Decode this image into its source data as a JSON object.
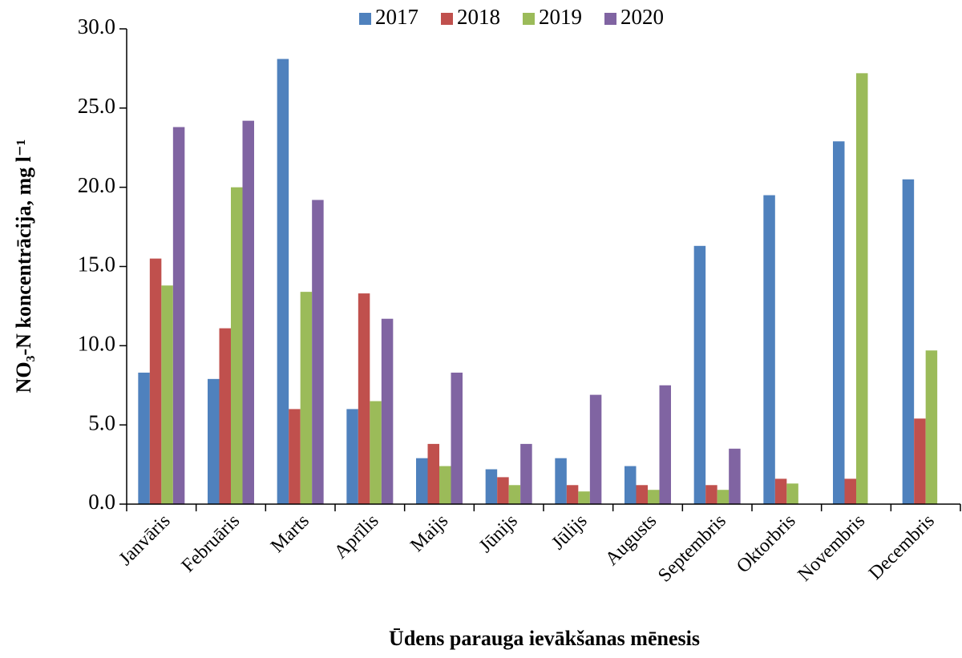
{
  "chart_data": {
    "type": "bar",
    "x_label": "Ūdens parauga ievākšanas mēnesis",
    "y_label": "NO₃-N koncentrācija, mg l⁻¹",
    "categories": [
      "Janvāris",
      "Februāris",
      "Marts",
      "Aprīlis",
      "Maijs",
      "Jūnijs",
      "Jūlijs",
      "Augusts",
      "Septembris",
      "Oktorbris",
      "Novembris",
      "Decembris"
    ],
    "series": [
      {
        "name": "2017",
        "color": "#4f81bd",
        "values": [
          8.3,
          7.9,
          28.1,
          6.0,
          2.9,
          2.2,
          2.9,
          2.4,
          16.3,
          19.5,
          22.9,
          20.5
        ]
      },
      {
        "name": "2018",
        "color": "#c0504d",
        "values": [
          15.5,
          11.1,
          6.0,
          13.3,
          3.8,
          1.7,
          1.2,
          1.2,
          1.2,
          1.6,
          1.6,
          5.4
        ]
      },
      {
        "name": "2019",
        "color": "#9bbb59",
        "values": [
          13.8,
          20.0,
          13.4,
          6.5,
          2.4,
          1.2,
          0.8,
          0.9,
          0.9,
          1.3,
          27.2,
          9.7
        ]
      },
      {
        "name": "2020",
        "color": "#8064a2",
        "values": [
          23.8,
          24.2,
          19.2,
          11.7,
          8.3,
          3.8,
          6.9,
          7.5,
          3.5,
          null,
          null,
          null
        ]
      }
    ],
    "ylim": [
      0,
      30
    ],
    "yticks": [
      {
        "value": 0,
        "label": "0.0"
      },
      {
        "value": 5,
        "label": "5.0"
      },
      {
        "value": 10,
        "label": "10.0"
      },
      {
        "value": 15,
        "label": "15.0"
      },
      {
        "value": 20,
        "label": "20.0"
      },
      {
        "value": 25,
        "label": "25.0"
      },
      {
        "value": 30,
        "label": "30.0"
      }
    ],
    "legend": "top"
  }
}
